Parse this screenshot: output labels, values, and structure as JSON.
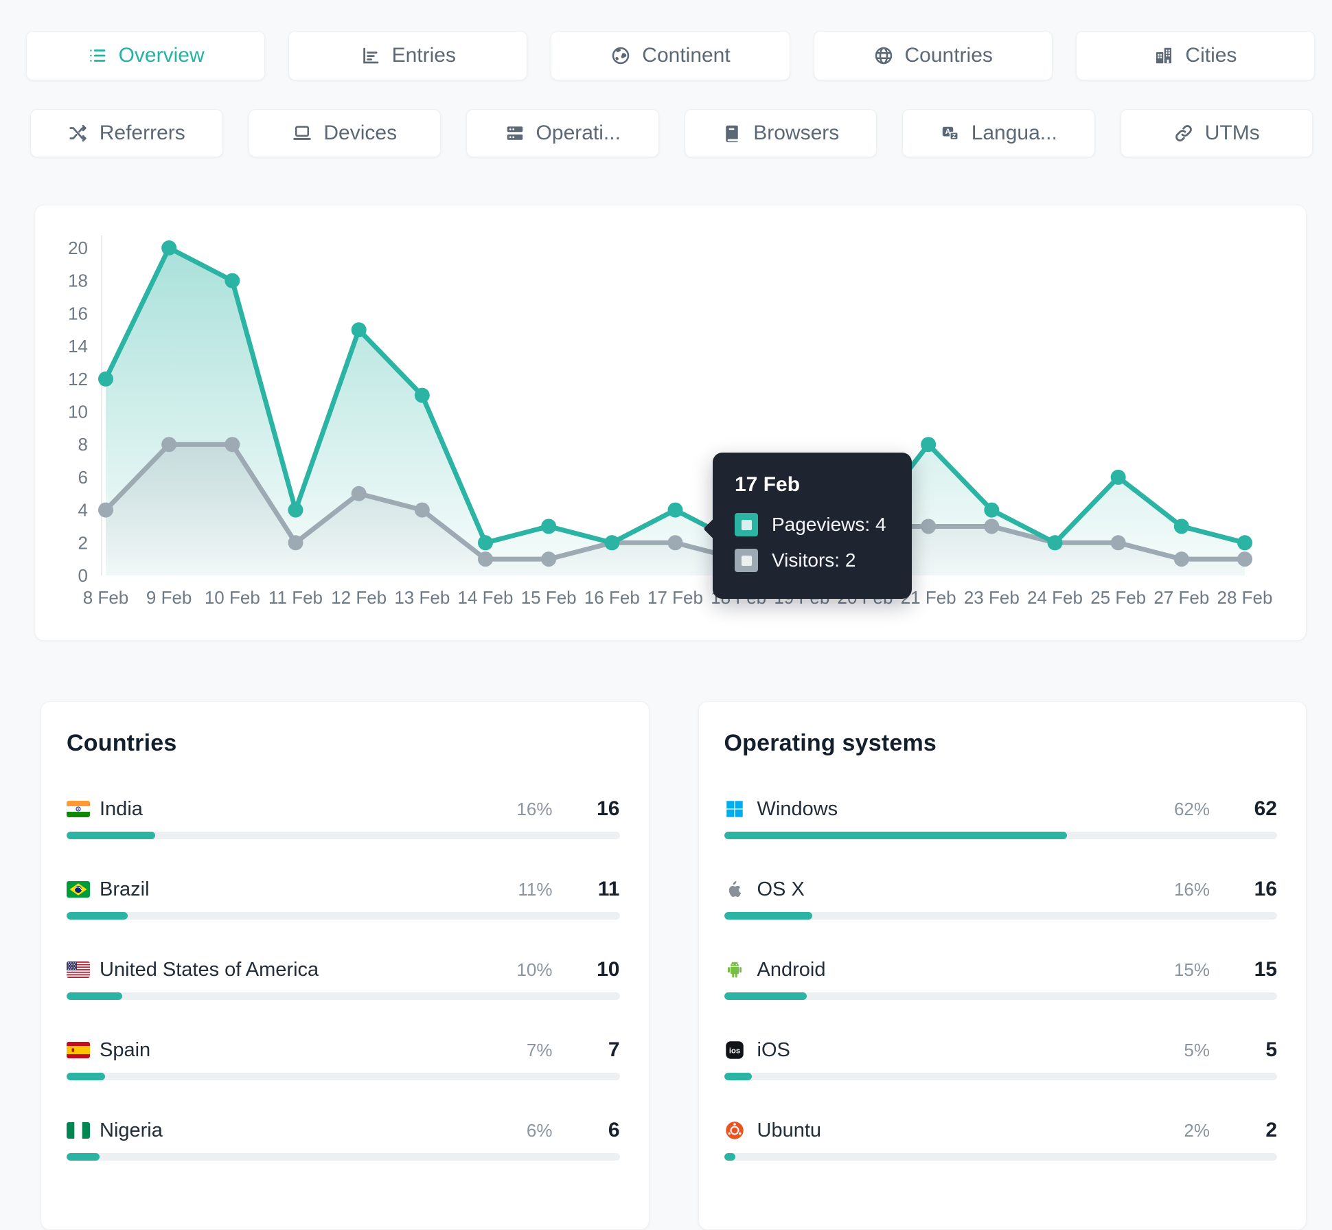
{
  "colors": {
    "accent": "#2bb3a3",
    "visitors_gray": "#9daab3",
    "tooltip_bg": "#1e2531",
    "page_bg": "#f7f9fa"
  },
  "tabs_row1": [
    {
      "label": "Overview",
      "icon": "list-icon",
      "active": true
    },
    {
      "label": "Entries",
      "icon": "bar-chart-icon",
      "active": false
    },
    {
      "label": "Continent",
      "icon": "earth-icon",
      "active": false
    },
    {
      "label": "Countries",
      "icon": "globe-icon",
      "active": false
    },
    {
      "label": "Cities",
      "icon": "buildings-icon",
      "active": false
    }
  ],
  "tabs_row2": [
    {
      "label": "Referrers",
      "icon": "shuffle-icon",
      "active": false
    },
    {
      "label": "Devices",
      "icon": "laptop-icon",
      "active": false
    },
    {
      "label": "Operati...",
      "icon": "server-icon",
      "active": false
    },
    {
      "label": "Browsers",
      "icon": "browser-icon",
      "active": false
    },
    {
      "label": "Langua...",
      "icon": "translate-icon",
      "active": false
    },
    {
      "label": "UTMs",
      "icon": "link-icon",
      "active": false
    }
  ],
  "chart_data": {
    "type": "line",
    "categories": [
      "8 Feb",
      "9 Feb",
      "10 Feb",
      "11 Feb",
      "12 Feb",
      "13 Feb",
      "14 Feb",
      "15 Feb",
      "16 Feb",
      "17 Feb",
      "18 Feb",
      "19 Feb",
      "20 Feb",
      "21 Feb",
      "23 Feb",
      "24 Feb",
      "25 Feb",
      "27 Feb",
      "28 Feb"
    ],
    "series": [
      {
        "name": "Pageviews",
        "color": "#2bb3a3",
        "values": [
          12,
          20,
          18,
          4,
          15,
          11,
          2,
          3,
          2,
          4,
          2,
          2,
          3,
          8,
          4,
          2,
          6,
          3,
          2
        ]
      },
      {
        "name": "Visitors",
        "color": "#9daab3",
        "values": [
          4,
          8,
          8,
          2,
          5,
          4,
          1,
          1,
          2,
          2,
          1,
          2,
          3,
          3,
          3,
          2,
          2,
          1,
          1
        ]
      }
    ],
    "ylim": [
      0,
      20
    ],
    "ytick_step": 2,
    "grid": false,
    "legend_position": "tooltip-only"
  },
  "tooltip": {
    "date": "17 Feb",
    "rows": [
      {
        "label": "Pageviews: 4",
        "color": "#2bb3a3"
      },
      {
        "label": "Visitors: 2",
        "color": "#9daab3"
      }
    ]
  },
  "panels": {
    "countries": {
      "title": "Countries",
      "rows": [
        {
          "label": "India",
          "icon": "flag-india",
          "percent": "16%",
          "count": "16"
        },
        {
          "label": "Brazil",
          "icon": "flag-brazil",
          "percent": "11%",
          "count": "11"
        },
        {
          "label": "United States of America",
          "icon": "flag-usa",
          "percent": "10%",
          "count": "10"
        },
        {
          "label": "Spain",
          "icon": "flag-spain",
          "percent": "7%",
          "count": "7"
        },
        {
          "label": "Nigeria",
          "icon": "flag-nigeria",
          "percent": "6%",
          "count": "6"
        }
      ]
    },
    "operating_systems": {
      "title": "Operating systems",
      "rows": [
        {
          "label": "Windows",
          "icon": "windows-icon",
          "percent": "62%",
          "count": "62"
        },
        {
          "label": "OS X",
          "icon": "apple-icon",
          "percent": "16%",
          "count": "16"
        },
        {
          "label": "Android",
          "icon": "android-icon",
          "percent": "15%",
          "count": "15"
        },
        {
          "label": "iOS",
          "icon": "ios-icon",
          "percent": "5%",
          "count": "5"
        },
        {
          "label": "Ubuntu",
          "icon": "ubuntu-icon",
          "percent": "2%",
          "count": "2"
        }
      ]
    }
  }
}
